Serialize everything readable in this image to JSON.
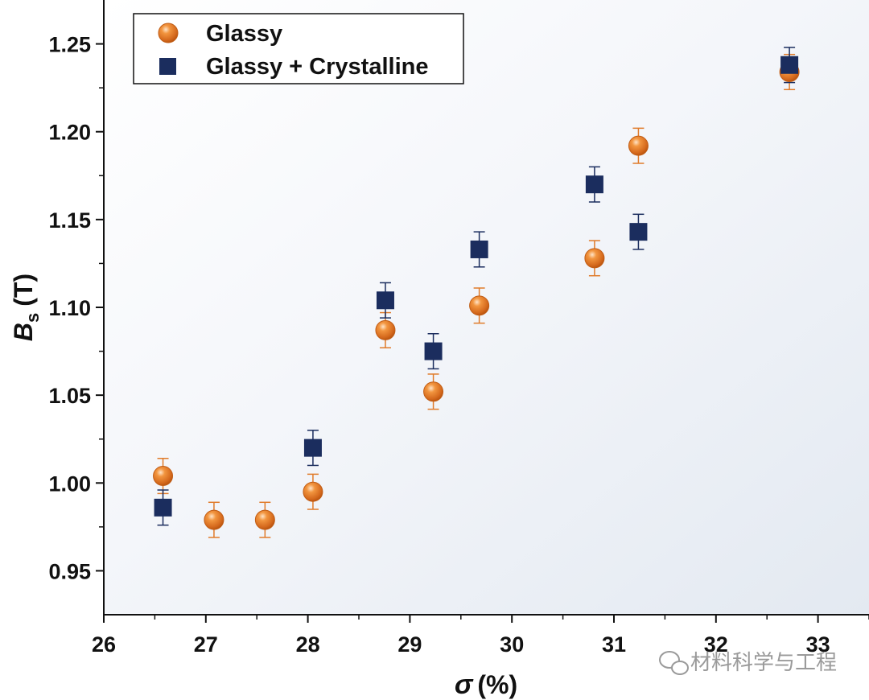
{
  "chart_data": {
    "type": "scatter",
    "xlabel": {
      "symbol": "σ",
      "unit": "(%)"
    },
    "ylabel": {
      "symbol": "B",
      "subscript": "s",
      "unit": "(T)"
    },
    "xlim": [
      26,
      33.5
    ],
    "ylim": [
      0.925,
      1.275
    ],
    "xticks": [
      26,
      27,
      28,
      29,
      30,
      31,
      32,
      33
    ],
    "yticks": [
      0.95,
      1.0,
      1.05,
      1.1,
      1.15,
      1.2,
      1.25
    ],
    "ytick_labels": [
      "0.95",
      "1.00",
      "1.05",
      "1.10",
      "1.15",
      "1.20",
      "1.25"
    ],
    "series": [
      {
        "name": "Glassy",
        "marker": "circle",
        "color": "#E07B2A",
        "points": [
          {
            "x": 26.58,
            "y": 1.004,
            "err": 0.01
          },
          {
            "x": 27.08,
            "y": 0.979,
            "err": 0.01
          },
          {
            "x": 27.58,
            "y": 0.979,
            "err": 0.01
          },
          {
            "x": 28.05,
            "y": 0.995,
            "err": 0.01
          },
          {
            "x": 28.76,
            "y": 1.087,
            "err": 0.01
          },
          {
            "x": 29.23,
            "y": 1.052,
            "err": 0.01
          },
          {
            "x": 29.68,
            "y": 1.101,
            "err": 0.01
          },
          {
            "x": 30.81,
            "y": 1.128,
            "err": 0.01
          },
          {
            "x": 31.24,
            "y": 1.192,
            "err": 0.01
          },
          {
            "x": 32.72,
            "y": 1.234,
            "err": 0.01
          }
        ]
      },
      {
        "name": "Glassy + Crystalline",
        "marker": "square",
        "color": "#1B2D5E",
        "points": [
          {
            "x": 26.58,
            "y": 0.986,
            "err": 0.01
          },
          {
            "x": 28.05,
            "y": 1.02,
            "err": 0.01
          },
          {
            "x": 28.76,
            "y": 1.104,
            "err": 0.01
          },
          {
            "x": 29.23,
            "y": 1.075,
            "err": 0.01
          },
          {
            "x": 29.68,
            "y": 1.133,
            "err": 0.01
          },
          {
            "x": 30.81,
            "y": 1.17,
            "err": 0.01
          },
          {
            "x": 31.24,
            "y": 1.143,
            "err": 0.01
          },
          {
            "x": 32.72,
            "y": 1.238,
            "err": 0.01
          }
        ]
      }
    ],
    "legend": {
      "placement": "top-left"
    }
  },
  "watermark": {
    "text": "材料科学与工程",
    "icon": "wechat-icon"
  }
}
